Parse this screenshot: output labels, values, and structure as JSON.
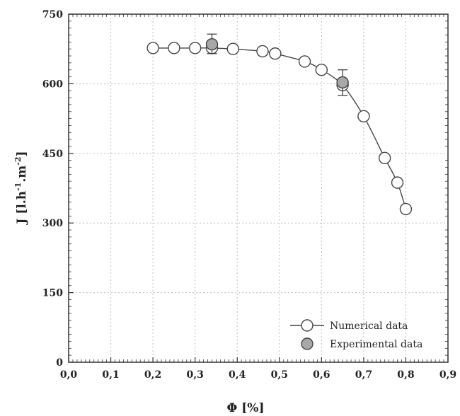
{
  "chart_data": {
    "type": "scatter",
    "xlabel": "Φ [%]",
    "ylabel_main": "J [l.h",
    "ylabel_sup1": "-1",
    "ylabel_mid": ".m",
    "ylabel_sup2": "-2",
    "ylabel_end": "]",
    "xlim": [
      0.0,
      0.9
    ],
    "ylim": [
      0,
      750
    ],
    "x_ticks": [
      "0,0",
      "0,1",
      "0,2",
      "0,3",
      "0,4",
      "0,5",
      "0,6",
      "0,7",
      "0,8",
      "0,9"
    ],
    "x_tick_values": [
      0.0,
      0.1,
      0.2,
      0.3,
      0.4,
      0.5,
      0.6,
      0.7,
      0.8,
      0.9
    ],
    "y_ticks": [
      "0",
      "150",
      "300",
      "450",
      "600",
      "750"
    ],
    "y_tick_values": [
      0,
      150,
      300,
      450,
      600,
      750
    ],
    "grid": true,
    "legend_position": "bottom-right",
    "series": [
      {
        "name": "Numerical data",
        "marker": "open-circle",
        "line": true,
        "x": [
          0.2,
          0.25,
          0.3,
          0.34,
          0.39,
          0.46,
          0.49,
          0.56,
          0.6,
          0.65,
          0.7,
          0.75,
          0.78,
          0.8
        ],
        "y": [
          677,
          677,
          677,
          677,
          675,
          670,
          665,
          648,
          630,
          597,
          530,
          440,
          387,
          330
        ]
      },
      {
        "name": "Experimental data",
        "marker": "filled-circle",
        "line": false,
        "x": [
          0.34,
          0.65
        ],
        "y": [
          685,
          603
        ],
        "err_low": [
          665,
          575
        ],
        "err_high": [
          707,
          630
        ]
      }
    ],
    "colors": {
      "grid": "#bdbdbd",
      "axis": "#333333",
      "marker_open": "#444444",
      "marker_fill": "#a8a8a8",
      "curve": "#444444"
    }
  }
}
